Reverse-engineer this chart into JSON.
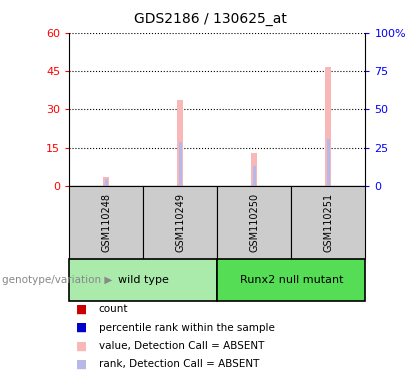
{
  "title": "GDS2186 / 130625_at",
  "samples": [
    "GSM110248",
    "GSM110249",
    "GSM110250",
    "GSM110251"
  ],
  "group_labels": [
    "wild type",
    "Runx2 null mutant"
  ],
  "value_absent": [
    3.5,
    33.5,
    13.0,
    46.5
  ],
  "rank_absent": [
    5.0,
    29.0,
    13.5,
    30.5
  ],
  "ylim_left": [
    0,
    60
  ],
  "ylim_right": [
    0,
    100
  ],
  "yticks_left": [
    0,
    15,
    30,
    45,
    60
  ],
  "yticks_right": [
    0,
    25,
    50,
    75,
    100
  ],
  "ytick_labels_left": [
    "0",
    "15",
    "30",
    "45",
    "60"
  ],
  "ytick_labels_right": [
    "0",
    "25",
    "50",
    "75",
    "100%"
  ],
  "color_value_absent": "#f9b8b8",
  "color_rank_absent": "#b8b8e8",
  "color_count": "#cc0000",
  "color_percentile": "#0000cc",
  "bg_plot": "#ffffff",
  "bg_sample_box": "#cccccc",
  "bg_group_wild": "#aaeaaa",
  "bg_group_mutant": "#55dd55",
  "legend_items": [
    {
      "label": "count",
      "color": "#cc0000"
    },
    {
      "label": "percentile rank within the sample",
      "color": "#0000cc"
    },
    {
      "label": "value, Detection Call = ABSENT",
      "color": "#f9b8b8"
    },
    {
      "label": "rank, Detection Call = ABSENT",
      "color": "#b8b8e8"
    }
  ],
  "genotype_label": "genotype/variation"
}
